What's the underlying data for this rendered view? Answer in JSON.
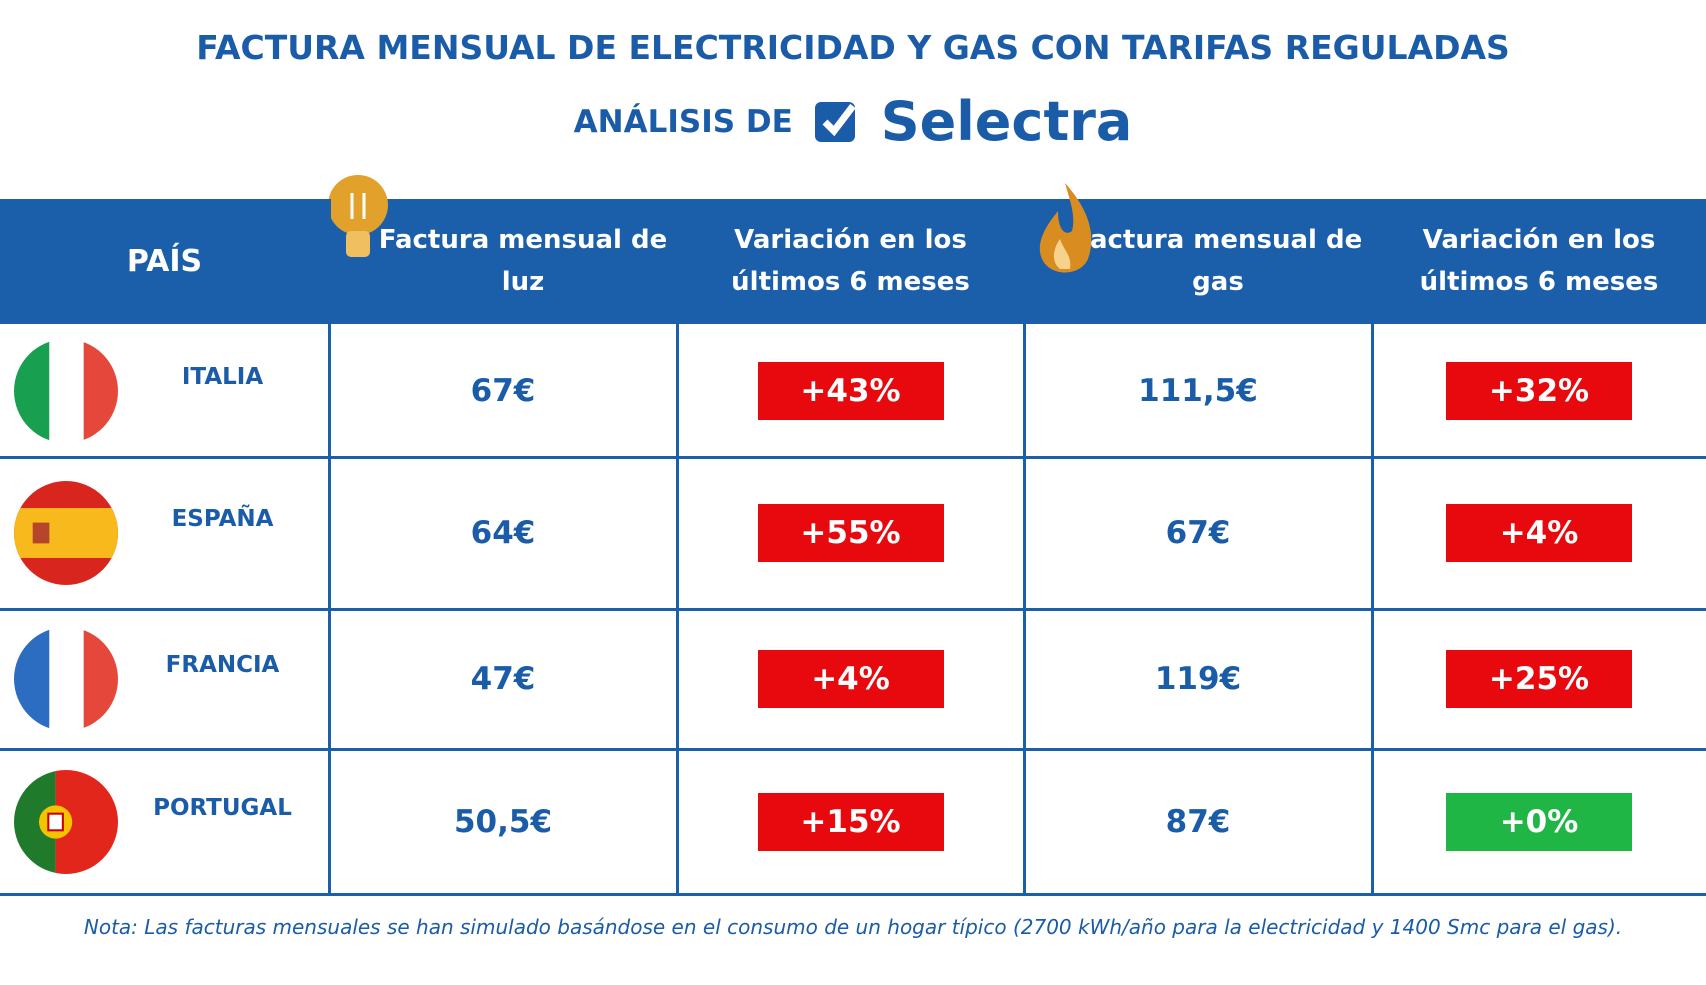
{
  "header": {
    "title": "FACTURA MENSUAL DE ELECTRICIDAD Y GAS CON TARIFAS REGULADAS",
    "subtitle": "ANÁLISIS DE",
    "brand": "Selectra"
  },
  "table": {
    "columns": [
      "PAÍS",
      "Factura mensual de luz",
      "Variación en los últimos 6 meses",
      "Factura mensual de gas",
      "Variación en los últimos 6 meses"
    ],
    "rows": [
      [
        "ITALIA",
        "67€",
        "+43%",
        "111,5€",
        "+32%"
      ],
      [
        "ESPAÑA",
        "64€",
        "+55%",
        "67€",
        "+4%"
      ],
      [
        "FRANCIA",
        "47€",
        "+4%",
        "119€",
        "+25%"
      ],
      [
        "PORTUGAL",
        "50,5€",
        "+15%",
        "87€",
        "+0%"
      ]
    ],
    "badge_colors": [
      [
        "#e8090f",
        "#e8090f"
      ],
      [
        "#e8090f",
        "#e8090f"
      ],
      [
        "#e8090f",
        "#e8090f"
      ],
      [
        "#e8090f",
        "#1fb645"
      ]
    ]
  },
  "note": "Nota: Las facturas mensuales se han simulado basándose en el consumo de un hogar típico (2700 kWh/año para la electricidad y 1400 Smc para el gas)."
}
